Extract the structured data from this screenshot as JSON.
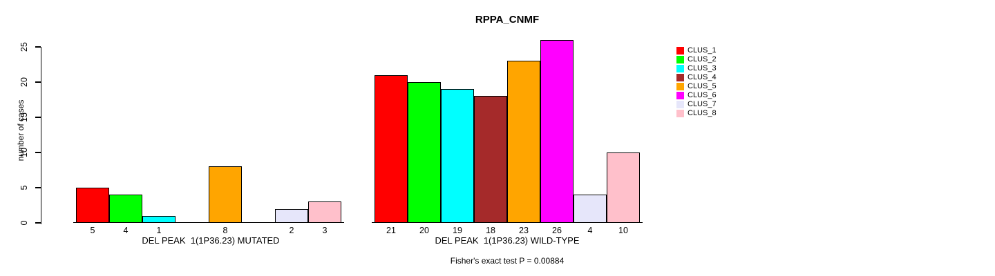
{
  "chart_data": {
    "type": "bar",
    "title": "RPPA_CNMF",
    "ylabel": "number of cases",
    "ylim": [
      0,
      26
    ],
    "yticks": [
      0,
      5,
      10,
      15,
      20,
      25
    ],
    "grid": false,
    "legend_position": "right",
    "categories": [
      "CLUS_1",
      "CLUS_2",
      "CLUS_3",
      "CLUS_4",
      "CLUS_5",
      "CLUS_6",
      "CLUS_7",
      "CLUS_8"
    ],
    "colors": [
      "#FF0000",
      "#00FF00",
      "#00FFFF",
      "#A52A2A",
      "#FFA500",
      "#FF00FF",
      "#E6E6FA",
      "#FFC0CB"
    ],
    "groups": [
      {
        "xlabel": "DEL PEAK  1(1P36.23) MUTATED",
        "values": [
          5,
          4,
          1,
          0,
          8,
          0,
          2,
          3
        ]
      },
      {
        "xlabel": "DEL PEAK  1(1P36.23) WILD-TYPE",
        "values": [
          21,
          20,
          19,
          18,
          23,
          26,
          4,
          10
        ]
      }
    ],
    "annotation": "Fisher's exact test P = 0.00884"
  },
  "legend": {
    "items": [
      {
        "label": "CLUS_1",
        "color": "#FF0000"
      },
      {
        "label": "CLUS_2",
        "color": "#00FF00"
      },
      {
        "label": "CLUS_3",
        "color": "#00FFFF"
      },
      {
        "label": "CLUS_4",
        "color": "#A52A2A"
      },
      {
        "label": "CLUS_5",
        "color": "#FFA500"
      },
      {
        "label": "CLUS_6",
        "color": "#FF00FF"
      },
      {
        "label": "CLUS_7",
        "color": "#E6E6FA"
      },
      {
        "label": "CLUS_8",
        "color": "#FFC0CB"
      }
    ]
  }
}
